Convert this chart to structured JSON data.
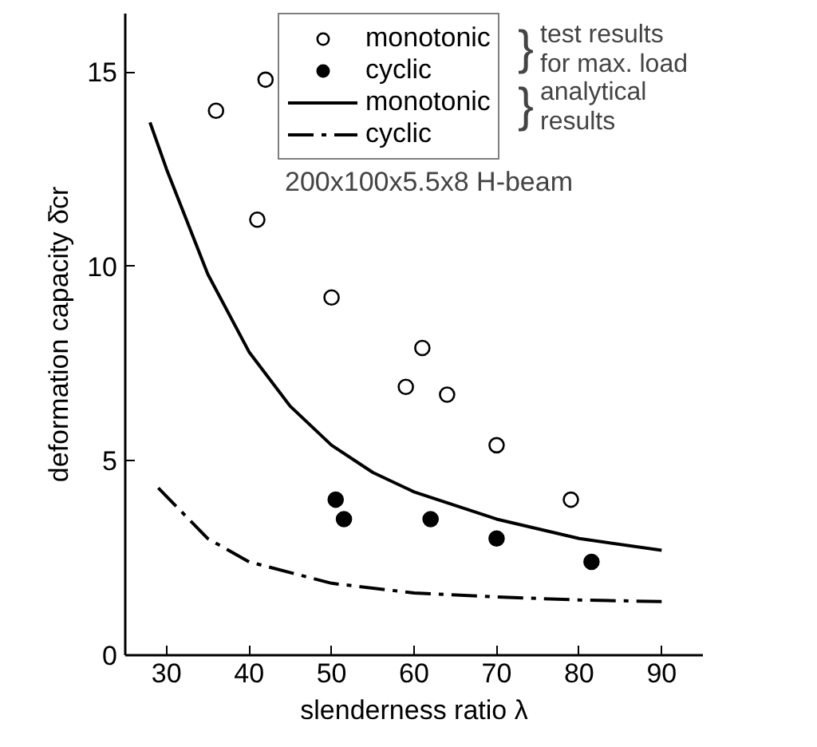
{
  "chart_data": {
    "type": "scatter",
    "xlabel": "slenderness ratio λ",
    "ylabel": "deformation capacity δ̄cr",
    "xlim": [
      25,
      95
    ],
    "ylim": [
      0,
      16.5
    ],
    "xticks": [
      30,
      40,
      50,
      60,
      70,
      80,
      90
    ],
    "yticks": [
      0,
      5,
      10,
      15
    ],
    "grid": false,
    "legend": "top right",
    "series": [
      {
        "name": "monotonic",
        "marker": "circle",
        "color": "#ffffff",
        "x": [
          36,
          42,
          41,
          50,
          61,
          59,
          64,
          70,
          79
        ],
        "values": [
          14.0,
          14.8,
          11.2,
          9.2,
          7.9,
          6.9,
          6.7,
          5.4,
          4.0
        ]
      },
      {
        "name": "cyclic",
        "marker": "circle",
        "color": "#000000",
        "x": [
          50.5,
          51.5,
          62,
          70,
          81.5
        ],
        "values": [
          4.0,
          3.5,
          3.5,
          3.0,
          2.4
        ]
      },
      {
        "name": "monotonic",
        "type": "line",
        "line_style": "solid",
        "color": "#000000",
        "x": [
          28,
          30,
          35,
          40,
          45,
          50,
          55,
          60,
          70,
          80,
          90
        ],
        "values": [
          13.7,
          12.5,
          9.8,
          7.8,
          6.4,
          5.4,
          4.7,
          4.2,
          3.5,
          3.0,
          2.7
        ]
      },
      {
        "name": "cyclic",
        "type": "line",
        "line_style": "dashdot",
        "color": "#000000",
        "x": [
          29,
          35,
          40,
          50,
          60,
          70,
          80,
          90
        ],
        "values": [
          4.3,
          3.0,
          2.4,
          1.85,
          1.6,
          1.5,
          1.42,
          1.38
        ]
      }
    ],
    "annotations": [
      "}",
      "test results\nfor max. load",
      "}",
      "analytical\nresults",
      "200x100x5.5x8  H-beam"
    ]
  }
}
